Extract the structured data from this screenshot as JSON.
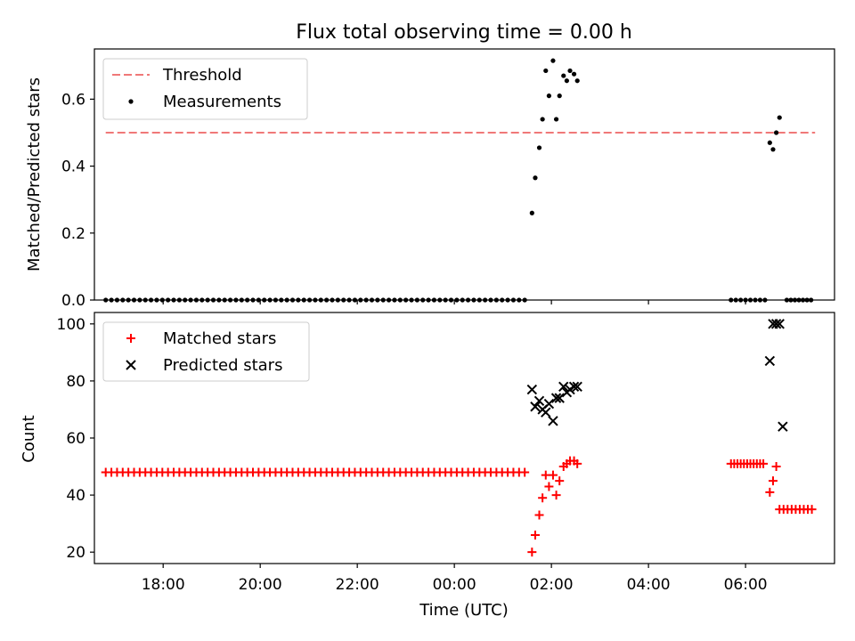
{
  "chart_data": [
    {
      "type": "scatter",
      "title": "Flux total observing time = 0.00 h",
      "ylabel": "Matched/Predicted stars",
      "xlabel": "",
      "xlim": [
        "16:35",
        "07:50"
      ],
      "ylim": [
        0,
        0.75
      ],
      "yticks": [
        "0.0",
        "0.2",
        "0.4",
        "0.6"
      ],
      "ytick_values": [
        0,
        0.2,
        0.4,
        0.6
      ],
      "legend": {
        "position": "upper-left",
        "entries": [
          "Threshold",
          "Measurements"
        ]
      },
      "threshold": {
        "name": "Threshold",
        "y": 0.5,
        "x_start": "16:49",
        "x_end": "07:26",
        "color": "#f07878",
        "style": "dashed"
      },
      "series": [
        {
          "name": "Measurements",
          "color": "#000000",
          "marker": "dot",
          "points": [
            [
              "01:36",
              0.26
            ],
            [
              "01:40",
              0.365
            ],
            [
              "01:45",
              0.455
            ],
            [
              "01:49",
              0.54
            ],
            [
              "01:53",
              0.685
            ],
            [
              "01:57",
              0.61
            ],
            [
              "02:02",
              0.715
            ],
            [
              "02:06",
              0.54
            ],
            [
              "02:10",
              0.61
            ],
            [
              "02:15",
              0.67
            ],
            [
              "02:19",
              0.655
            ],
            [
              "02:23",
              0.685
            ],
            [
              "02:28",
              0.675
            ],
            [
              "02:32",
              0.655
            ],
            [
              "06:30",
              0.47
            ],
            [
              "06:34",
              0.45
            ],
            [
              "06:38",
              0.5
            ],
            [
              "06:42",
              0.545
            ]
          ],
          "zero_runs": [
            {
              "start": "16:49",
              "end": "01:32",
              "step_min": 7
            },
            {
              "start": "05:42",
              "end": "06:25",
              "step_min": 6
            },
            {
              "start": "06:51",
              "end": "07:22",
              "step_min": 5
            }
          ]
        }
      ]
    },
    {
      "type": "scatter",
      "title": "",
      "ylabel": "Count",
      "xlabel": "Time (UTC)",
      "xlim": [
        "16:35",
        "07:50"
      ],
      "ylim": [
        16,
        104
      ],
      "yticks": [
        "20",
        "40",
        "60",
        "80",
        "100"
      ],
      "ytick_values": [
        20,
        40,
        60,
        80,
        100
      ],
      "xticks": [
        "18:00",
        "20:00",
        "22:00",
        "00:00",
        "02:00",
        "04:00",
        "06:00"
      ],
      "legend": {
        "position": "upper-left",
        "entries": [
          "Matched stars",
          "Predicted stars"
        ]
      },
      "series": [
        {
          "name": "Matched stars",
          "color": "#ff0000",
          "marker": "plus",
          "points": [
            [
              "01:36",
              20
            ],
            [
              "01:40",
              26
            ],
            [
              "01:45",
              33
            ],
            [
              "01:49",
              39
            ],
            [
              "01:53",
              47
            ],
            [
              "01:57",
              43
            ],
            [
              "02:02",
              47
            ],
            [
              "02:06",
              40
            ],
            [
              "02:10",
              45
            ],
            [
              "02:15",
              50
            ],
            [
              "02:19",
              51
            ],
            [
              "02:23",
              52
            ],
            [
              "02:28",
              52
            ],
            [
              "02:32",
              51
            ],
            [
              "06:30",
              41
            ],
            [
              "06:34",
              45
            ],
            [
              "06:38",
              50
            ]
          ],
          "runs": [
            {
              "start": "16:49",
              "end": "01:32",
              "step_min": 7,
              "value": 48
            },
            {
              "start": "05:42",
              "end": "06:25",
              "step_min": 4,
              "value": 51
            },
            {
              "start": "06:42",
              "end": "07:22",
              "step_min": 5,
              "value": 35
            }
          ]
        },
        {
          "name": "Predicted stars",
          "color": "#000000",
          "marker": "x",
          "points": [
            [
              "01:36",
              77
            ],
            [
              "01:40",
              71
            ],
            [
              "01:45",
              73
            ],
            [
              "01:49",
              70
            ],
            [
              "01:53",
              69
            ],
            [
              "01:57",
              72
            ],
            [
              "02:02",
              66
            ],
            [
              "02:06",
              74
            ],
            [
              "02:10",
              74
            ],
            [
              "02:15",
              78
            ],
            [
              "02:19",
              76
            ],
            [
              "02:23",
              77
            ],
            [
              "02:28",
              78
            ],
            [
              "02:32",
              78
            ],
            [
              "06:30",
              87
            ],
            [
              "06:34",
              100
            ],
            [
              "06:38",
              100
            ],
            [
              "06:42",
              100
            ],
            [
              "06:46",
              64
            ]
          ]
        }
      ]
    }
  ]
}
